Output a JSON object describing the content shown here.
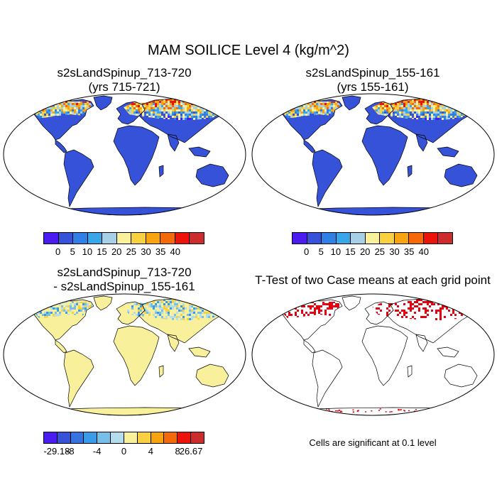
{
  "title": "MAM SOILICE Level 4 (kg/m^2)",
  "panels": [
    {
      "id": "case1",
      "title_line1": "s2sLandSpinup_713-720",
      "title_line2": "(yrs 715-721)"
    },
    {
      "id": "case2",
      "title_line1": "s2sLandSpinup_155-161",
      "title_line2": "(yrs 155-161)"
    },
    {
      "id": "diff",
      "title_line1": "s2sLandSpinup_713-720",
      "title_line2": "- s2sLandSpinup_155-161"
    },
    {
      "id": "ttest",
      "title_line1": "T-Test of two Case means at each grid point"
    }
  ],
  "colorbars": {
    "abs": {
      "colors": [
        "#4b1cf0",
        "#3652d8",
        "#2f7fe6",
        "#3aa6ea",
        "#a7cfe6",
        "#f8f09a",
        "#f8d040",
        "#f8a410",
        "#f46a0a",
        "#ec1408",
        "#cc2c2c"
      ],
      "tick_labels": [
        "0",
        "5",
        "10",
        "15",
        "20",
        "25",
        "30",
        "35",
        "40"
      ]
    },
    "diff": {
      "colors": [
        "#4b1cf0",
        "#3652d8",
        "#3574e0",
        "#3a9be9",
        "#76bfe9",
        "#b3dcec",
        "#f8f09a",
        "#f8d040",
        "#f8a410",
        "#f46a0a",
        "#ec1408",
        "#cc2c2c"
      ],
      "tick_labels": [
        "-29.18",
        "-8",
        "-4",
        "0",
        "4",
        "8",
        "26.67"
      ]
    }
  },
  "fills": {
    "land_base": "#3652d8",
    "diff_base": "#f8f09a",
    "significant": "#e3000f"
  },
  "note": "Cells are significant at 0.1 level"
}
